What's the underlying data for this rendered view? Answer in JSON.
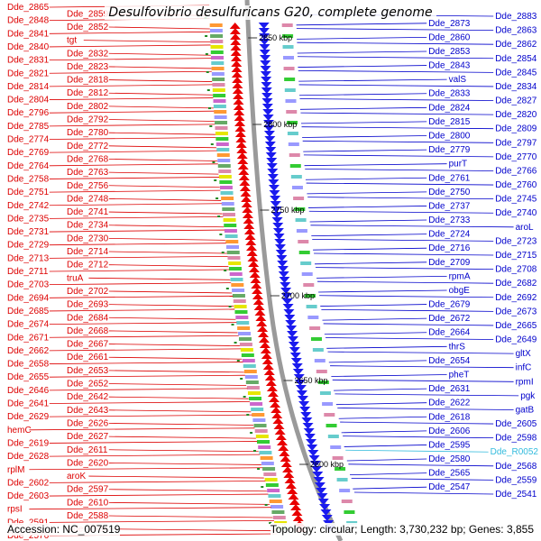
{
  "title": "Desulfovibrio desulfuricans G20, complete genome",
  "footer": {
    "accession_label": "Accession:",
    "accession": "NC_007519",
    "topology_label": "Topology:",
    "topology": "circular",
    "length_label": "Length:",
    "length": "3,730,232 bp",
    "genes_label": "Genes:",
    "genes": "3,855"
  },
  "colors": {
    "left_labels": "#dd0000",
    "right_labels": "#0000cc",
    "rna_label": "#33bbdd",
    "backbone": "#909090",
    "tick": "#228822"
  },
  "kbp_marks": [
    "2850 kbp",
    "2800 kbp",
    "2750 kbp",
    "2700 kbp",
    "2650 kbp",
    "2600 kbp"
  ],
  "left_labels": [
    "Dde_2865",
    "Dde_2859",
    "Dde_2848",
    "Dde_2852",
    "Dde_2841",
    "tgt",
    "Dde_2840",
    "Dde_2832",
    "Dde_2831",
    "Dde_2823",
    "Dde_2821",
    "Dde_2818",
    "Dde_2814",
    "Dde_2812",
    "Dde_2804",
    "Dde_2802",
    "Dde_2796",
    "Dde_2792",
    "Dde_2785",
    "Dde_2780",
    "Dde_2774",
    "Dde_2772",
    "Dde_2769",
    "Dde_2768",
    "Dde_2764",
    "Dde_2763",
    "Dde_2758",
    "Dde_2756",
    "Dde_2751",
    "Dde_2748",
    "Dde_2742",
    "Dde_2741",
    "Dde_2735",
    "Dde_2734",
    "Dde_2731",
    "Dde_2730",
    "Dde_2729",
    "Dde_2714",
    "Dde_2713",
    "Dde_2712",
    "Dde_2711",
    "truA",
    "Dde_2703",
    "Dde_2702",
    "Dde_2694",
    "Dde_2693",
    "Dde_2685",
    "Dde_2684",
    "Dde_2674",
    "Dde_2668",
    "Dde_2671",
    "Dde_2667",
    "Dde_2662",
    "Dde_2661",
    "Dde_2658",
    "Dde_2653",
    "Dde_2655",
    "Dde_2652",
    "Dde_2646",
    "Dde_2642",
    "Dde_2641",
    "Dde_2643",
    "Dde_2629",
    "Dde_2626",
    "hemC",
    "Dde_2627",
    "Dde_2619",
    "Dde_2611",
    "Dde_2628",
    "Dde_2620",
    "rplM",
    "aroK",
    "Dde_2602",
    "Dde_2597",
    "Dde_2603",
    "Dde_2610",
    "rpsI",
    "Dde_2588",
    "Dde_2591",
    "Dde_2584",
    "Dde_2576"
  ],
  "right_labels": [
    "Dde_2883",
    "Dde_2873",
    "Dde_2863",
    "Dde_2860",
    "Dde_2862",
    "Dde_2853",
    "Dde_2854",
    "Dde_2843",
    "Dde_2845",
    "valS",
    "Dde_2834",
    "Dde_2833",
    "Dde_2827",
    "Dde_2824",
    "Dde_2820",
    "Dde_2815",
    "Dde_2809",
    "Dde_2800",
    "Dde_2797",
    "Dde_2779",
    "Dde_2770",
    "purT",
    "Dde_2766",
    "Dde_2761",
    "Dde_2760",
    "Dde_2750",
    "Dde_2745",
    "Dde_2737",
    "Dde_2740",
    "Dde_2733",
    "aroL",
    "Dde_2724",
    "Dde_2723",
    "Dde_2716",
    "Dde_2715",
    "Dde_2709",
    "Dde_2708",
    "rpmA",
    "Dde_2682",
    "obgE",
    "Dde_2692",
    "Dde_2679",
    "Dde_2673",
    "Dde_2672",
    "Dde_2665",
    "Dde_2664",
    "Dde_2649",
    "thrS",
    "gltX",
    "Dde_2654",
    "infC",
    "pheT",
    "rpmI",
    "Dde_2631",
    "pgk",
    "Dde_2622",
    "gatB",
    "Dde_2618",
    "Dde_2605",
    "Dde_2606",
    "Dde_2598",
    "Dde_2595",
    "Dde_R0052",
    "Dde_2580",
    "Dde_2568",
    "Dde_2565",
    "Dde_2559",
    "Dde_2547",
    "Dde_2541"
  ]
}
